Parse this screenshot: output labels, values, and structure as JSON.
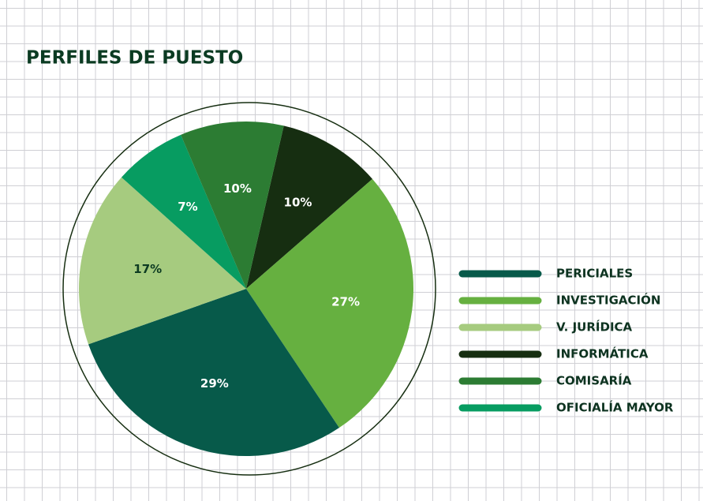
{
  "chart_data": {
    "type": "pie",
    "title": "PERFILES DE PUESTO",
    "categories": [
      "PERICIALES",
      "INVESTIGACIÓN",
      "V. JURÍDICA",
      "INFORMÁTICA",
      "COMISARÍA",
      "OFICIALÍA MAYOR"
    ],
    "values": [
      29,
      27,
      17,
      10,
      10,
      7
    ],
    "value_labels": [
      "29%",
      "27%",
      "17%",
      "10%",
      "10%",
      "7%"
    ],
    "colors": [
      "#075a4a",
      "#66b040",
      "#a6cb7f",
      "#162e11",
      "#2c7c33",
      "#079c61"
    ],
    "legend": "right"
  }
}
